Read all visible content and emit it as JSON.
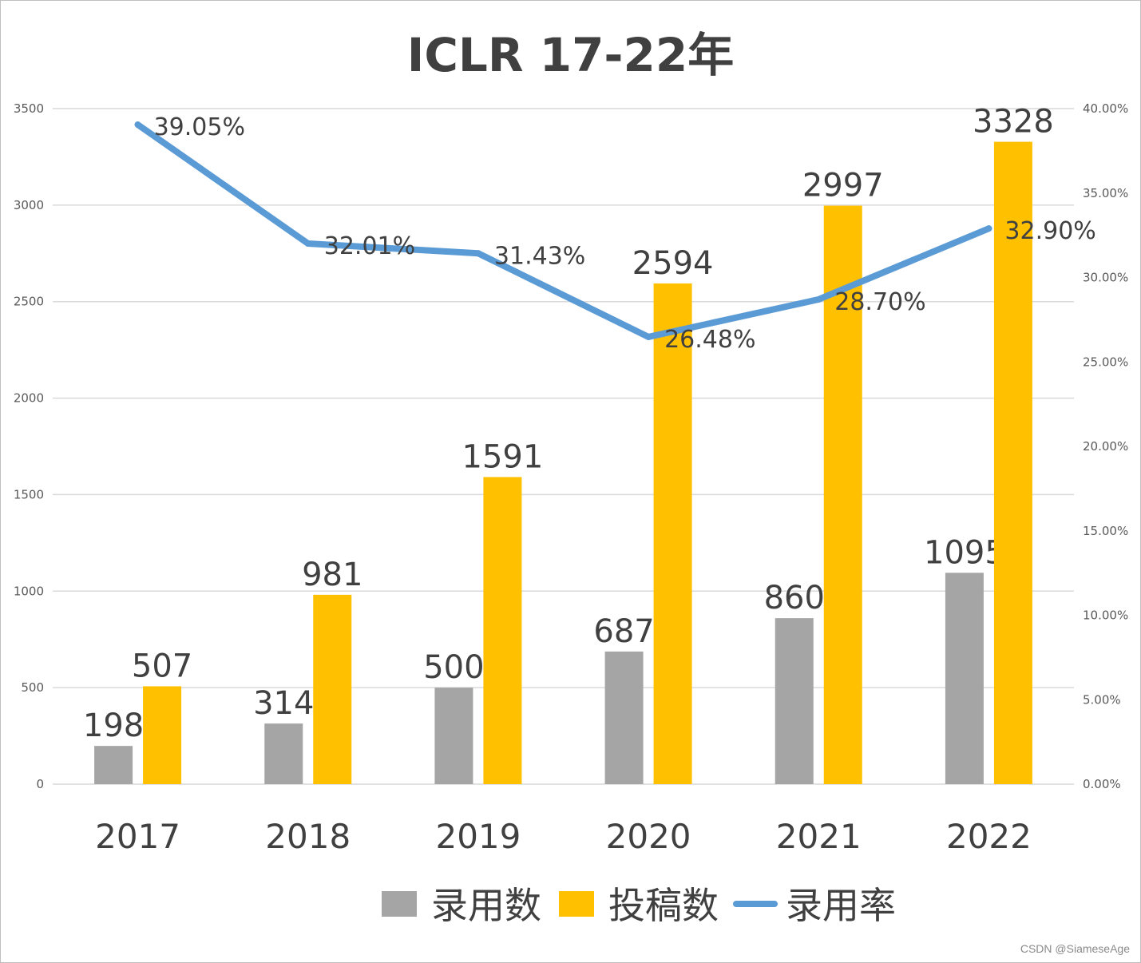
{
  "chart_data": {
    "type": "bar",
    "title": "ICLR 17-22年",
    "categories": [
      "2017",
      "2018",
      "2019",
      "2020",
      "2021",
      "2022"
    ],
    "series": [
      {
        "name": "录用数",
        "type": "bar",
        "axis": "left",
        "color": "#a5a5a5",
        "values": [
          198,
          314,
          500,
          687,
          860,
          1095
        ],
        "labels": [
          "198",
          "314",
          "500",
          "687",
          "860",
          "1095"
        ]
      },
      {
        "name": "投稿数",
        "type": "bar",
        "axis": "left",
        "color": "#ffc000",
        "values": [
          507,
          981,
          1591,
          2594,
          2997,
          3328
        ],
        "labels": [
          "507",
          "981",
          "1591",
          "2594",
          "2997",
          "3328"
        ]
      },
      {
        "name": "录用率",
        "type": "line",
        "axis": "right",
        "color": "#5b9bd5",
        "values": [
          39.05,
          32.01,
          31.43,
          26.48,
          28.7,
          32.9
        ],
        "labels": [
          "39.05%",
          "32.01%",
          "31.43%",
          "26.48%",
          "28.70%",
          "32.90%"
        ]
      }
    ],
    "y_left": {
      "min": 0,
      "max": 3500,
      "ticks": [
        "0",
        "500",
        "1000",
        "1500",
        "2000",
        "2500",
        "3000",
        "3500"
      ]
    },
    "y_right": {
      "min": 0,
      "max": 40,
      "ticks": [
        "0.00%",
        "5.00%",
        "10.00%",
        "15.00%",
        "20.00%",
        "25.00%",
        "30.00%",
        "35.00%",
        "40.00%"
      ]
    },
    "grid": true,
    "legend_position": "bottom"
  },
  "watermark": "CSDN @SiameseAge"
}
